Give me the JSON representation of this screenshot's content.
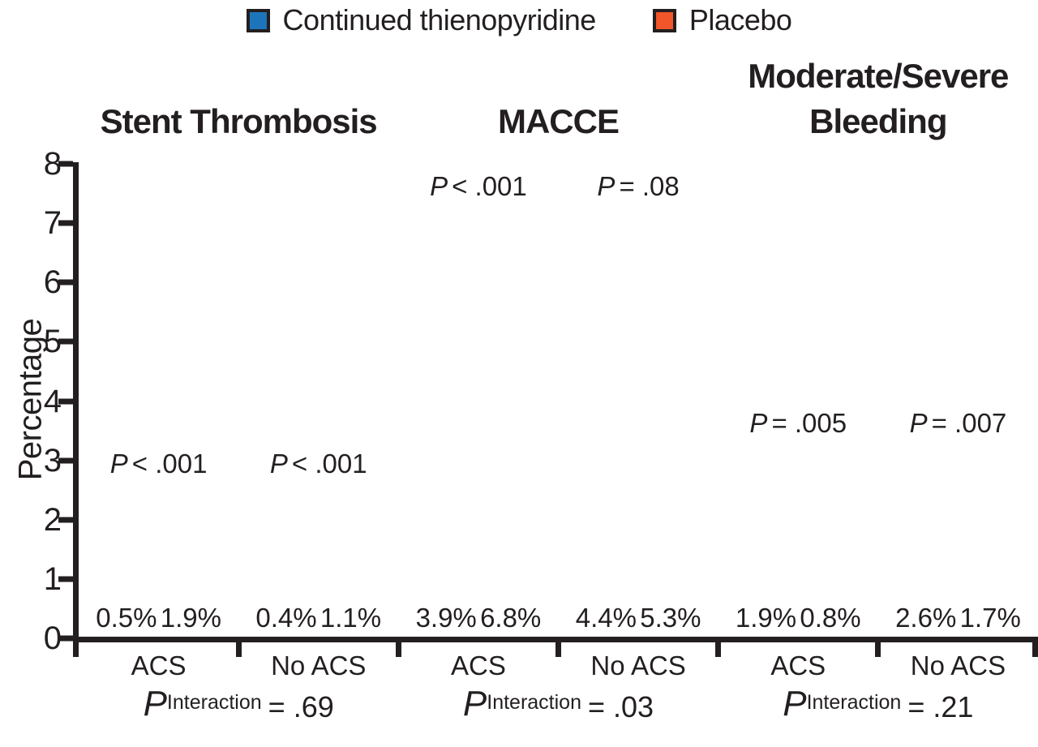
{
  "figure": {
    "background": "#FFFFFF",
    "ink_color": "#231F20"
  },
  "legend": {
    "items": [
      {
        "label": "Continued thienopyridine",
        "color": "#1C75BB"
      },
      {
        "label": "Placebo",
        "color": "#F1552A"
      }
    ]
  },
  "y_axis": {
    "label": "Percentage",
    "ticks": [
      "8",
      "7",
      "6",
      "5",
      "4",
      "3",
      "2",
      "1",
      "0"
    ]
  },
  "panels": [
    {
      "title_lines": [
        "Stent Thrombosis",
        ""
      ],
      "p_interaction": {
        "p": "P",
        "sub": "Interaction",
        "value": "= .69"
      },
      "groups": [
        {
          "category": "ACS",
          "p_label": {
            "p": "P",
            "rest": "< .001"
          },
          "bars": [
            {
              "series": "Continued thienopyridine",
              "value": 0.5,
              "label": "0.5%"
            },
            {
              "series": "Placebo",
              "value": 1.9,
              "label": "1.9%"
            }
          ]
        },
        {
          "category": "No ACS",
          "p_label": {
            "p": "P",
            "rest": "< .001"
          },
          "bars": [
            {
              "series": "Continued thienopyridine",
              "value": 0.4,
              "label": "0.4%"
            },
            {
              "series": "Placebo",
              "value": 1.1,
              "label": "1.1%"
            }
          ]
        }
      ]
    },
    {
      "title_lines": [
        "MACCE",
        ""
      ],
      "p_interaction": {
        "p": "P",
        "sub": "Interaction",
        "value": "= .03"
      },
      "groups": [
        {
          "category": "ACS",
          "p_label": {
            "p": "P",
            "rest": "< .001"
          },
          "bars": [
            {
              "series": "Continued thienopyridine",
              "value": 3.9,
              "label": "3.9%"
            },
            {
              "series": "Placebo",
              "value": 6.8,
              "label": "6.8%"
            }
          ]
        },
        {
          "category": "No ACS",
          "p_label": {
            "p": "P",
            "rest": "= .08"
          },
          "bars": [
            {
              "series": "Continued thienopyridine",
              "value": 4.4,
              "label": "4.4%"
            },
            {
              "series": "Placebo",
              "value": 5.3,
              "label": "5.3%"
            }
          ]
        }
      ]
    },
    {
      "title_lines": [
        "Moderate/Severe",
        "Bleeding"
      ],
      "p_interaction": {
        "p": "P",
        "sub": "Interaction",
        "value": "= .21"
      },
      "groups": [
        {
          "category": "ACS",
          "p_label": {
            "p": "P",
            "rest": "= .005"
          },
          "bars": [
            {
              "series": "Continued thienopyridine",
              "value": 1.9,
              "label": "1.9%"
            },
            {
              "series": "Placebo",
              "value": 0.8,
              "label": "0.8%"
            }
          ]
        },
        {
          "category": "No ACS",
          "p_label": {
            "p": "P",
            "rest": "= .007"
          },
          "bars": [
            {
              "series": "Continued thienopyridine",
              "value": 2.6,
              "label": "2.6%"
            },
            {
              "series": "Placebo",
              "value": 1.7,
              "label": "1.7%"
            }
          ]
        }
      ]
    }
  ],
  "chart_data": {
    "type": "bar",
    "title": "",
    "ylabel": "Percentage",
    "ylim": [
      0,
      8
    ],
    "yticks": [
      0,
      1,
      2,
      3,
      4,
      5,
      6,
      7,
      8
    ],
    "grid": false,
    "legend_position": "top",
    "series_names": [
      "Continued thienopyridine",
      "Placebo"
    ],
    "series_colors": [
      "#1C75BB",
      "#F1552A"
    ],
    "panels": [
      {
        "title": "Stent Thrombosis",
        "categories": [
          "ACS",
          "No ACS"
        ],
        "series": [
          {
            "name": "Continued thienopyridine",
            "values": [
              0.5,
              0.4
            ]
          },
          {
            "name": "Placebo",
            "values": [
              1.9,
              1.1
            ]
          }
        ],
        "p_values": [
          "P < .001",
          "P < .001"
        ],
        "p_interaction": ".69"
      },
      {
        "title": "MACCE",
        "categories": [
          "ACS",
          "No ACS"
        ],
        "series": [
          {
            "name": "Continued thienopyridine",
            "values": [
              3.9,
              4.4
            ]
          },
          {
            "name": "Placebo",
            "values": [
              6.8,
              5.3
            ]
          }
        ],
        "p_values": [
          "P < .001",
          "P = .08"
        ],
        "p_interaction": ".03"
      },
      {
        "title": "Moderate/Severe Bleeding",
        "categories": [
          "ACS",
          "No ACS"
        ],
        "series": [
          {
            "name": "Continued thienopyridine",
            "values": [
              1.9,
              2.6
            ]
          },
          {
            "name": "Placebo",
            "values": [
              0.8,
              1.7
            ]
          }
        ],
        "p_values": [
          "P = .005",
          "P = .007"
        ],
        "p_interaction": ".21"
      }
    ]
  }
}
